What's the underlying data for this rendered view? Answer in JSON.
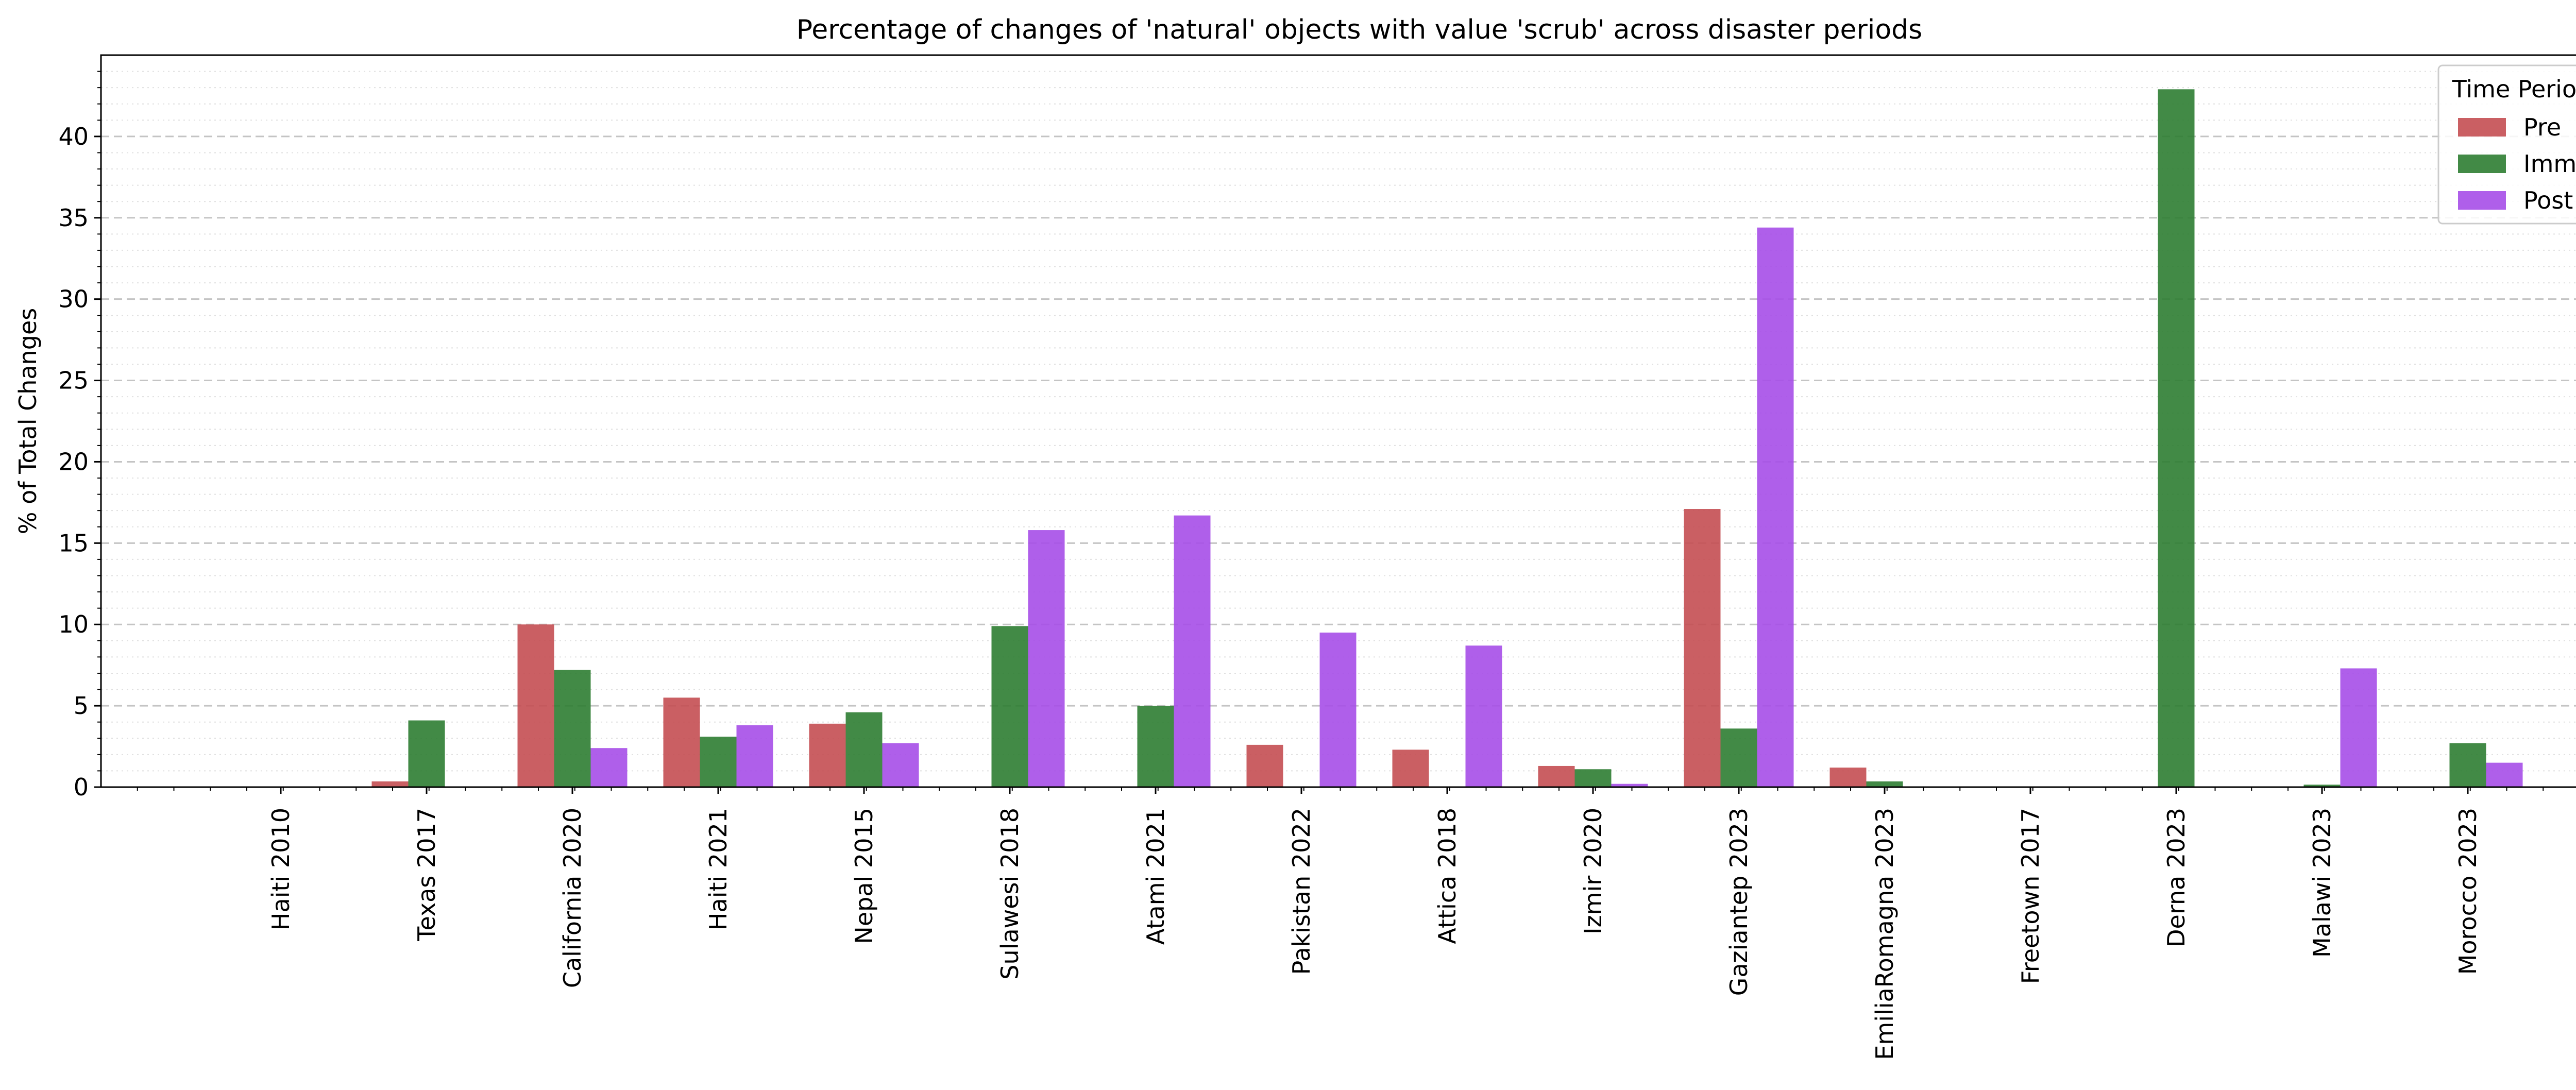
{
  "chart_data": {
    "type": "bar",
    "title": "Percentage of changes of 'natural' objects with value 'scrub' across disaster periods",
    "xlabel": "",
    "ylabel": "% of Total Changes",
    "ylim": [
      0,
      45
    ],
    "yticks": [
      0,
      5,
      10,
      15,
      20,
      25,
      30,
      35,
      40
    ],
    "grid": "horizontal dashed major, dotted minor",
    "legend": {
      "title": "Time Period",
      "placement": "top-right"
    },
    "categories": [
      "Haiti 2010",
      "Texas 2017",
      "California 2020",
      "Haiti 2021",
      "Nepal 2015",
      "Sulawesi 2018",
      "Atami 2021",
      "Pakistan 2022",
      "Attica 2018",
      "Izmir 2020",
      "Gaziantep 2023",
      "EmiliaRomagna 2023",
      "Freetown 2017",
      "Derna 2023",
      "Malawi 2023",
      "Morocco 2023"
    ],
    "series": [
      {
        "name": "Pre",
        "color": "#c44e52",
        "values": [
          0,
          0.35,
          10.0,
          5.5,
          3.9,
          0,
          0,
          2.6,
          2.3,
          1.3,
          17.1,
          1.2,
          0,
          0,
          0,
          0
        ]
      },
      {
        "name": "Imm",
        "color": "#2e7d32",
        "values": [
          0,
          4.1,
          7.2,
          3.1,
          4.6,
          9.9,
          5.0,
          0,
          0,
          1.1,
          3.6,
          0.35,
          0,
          42.9,
          0.15,
          2.7
        ]
      },
      {
        "name": "Post",
        "color": "#a64ee8",
        "values": [
          0,
          0,
          2.4,
          3.8,
          2.7,
          15.8,
          16.7,
          9.5,
          8.7,
          0.2,
          34.4,
          0,
          0,
          0,
          7.3,
          1.5
        ]
      }
    ]
  }
}
